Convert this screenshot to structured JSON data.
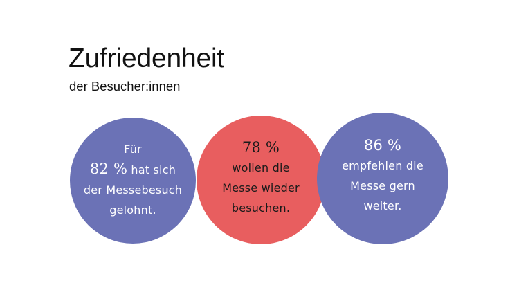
{
  "header": {
    "title": "Zufriedenheit",
    "subtitle": "der Besucher:innen"
  },
  "colors": {
    "blue": "#6b72b6",
    "red": "#e85e5f",
    "background": "#ffffff"
  },
  "circles": [
    {
      "color": "blue",
      "lines": [
        "Für",
        "82 %",
        "hat sich",
        "der Messebesuch",
        "gelohnt."
      ],
      "value": "82 %"
    },
    {
      "color": "red",
      "lines": [
        "78 %",
        "wollen die",
        "Messe wieder",
        "besuchen."
      ],
      "value": "78 %"
    },
    {
      "color": "blue",
      "lines": [
        "86 %",
        "empfehlen die",
        "Messe gern",
        "weiter."
      ],
      "value": "86 %"
    }
  ]
}
